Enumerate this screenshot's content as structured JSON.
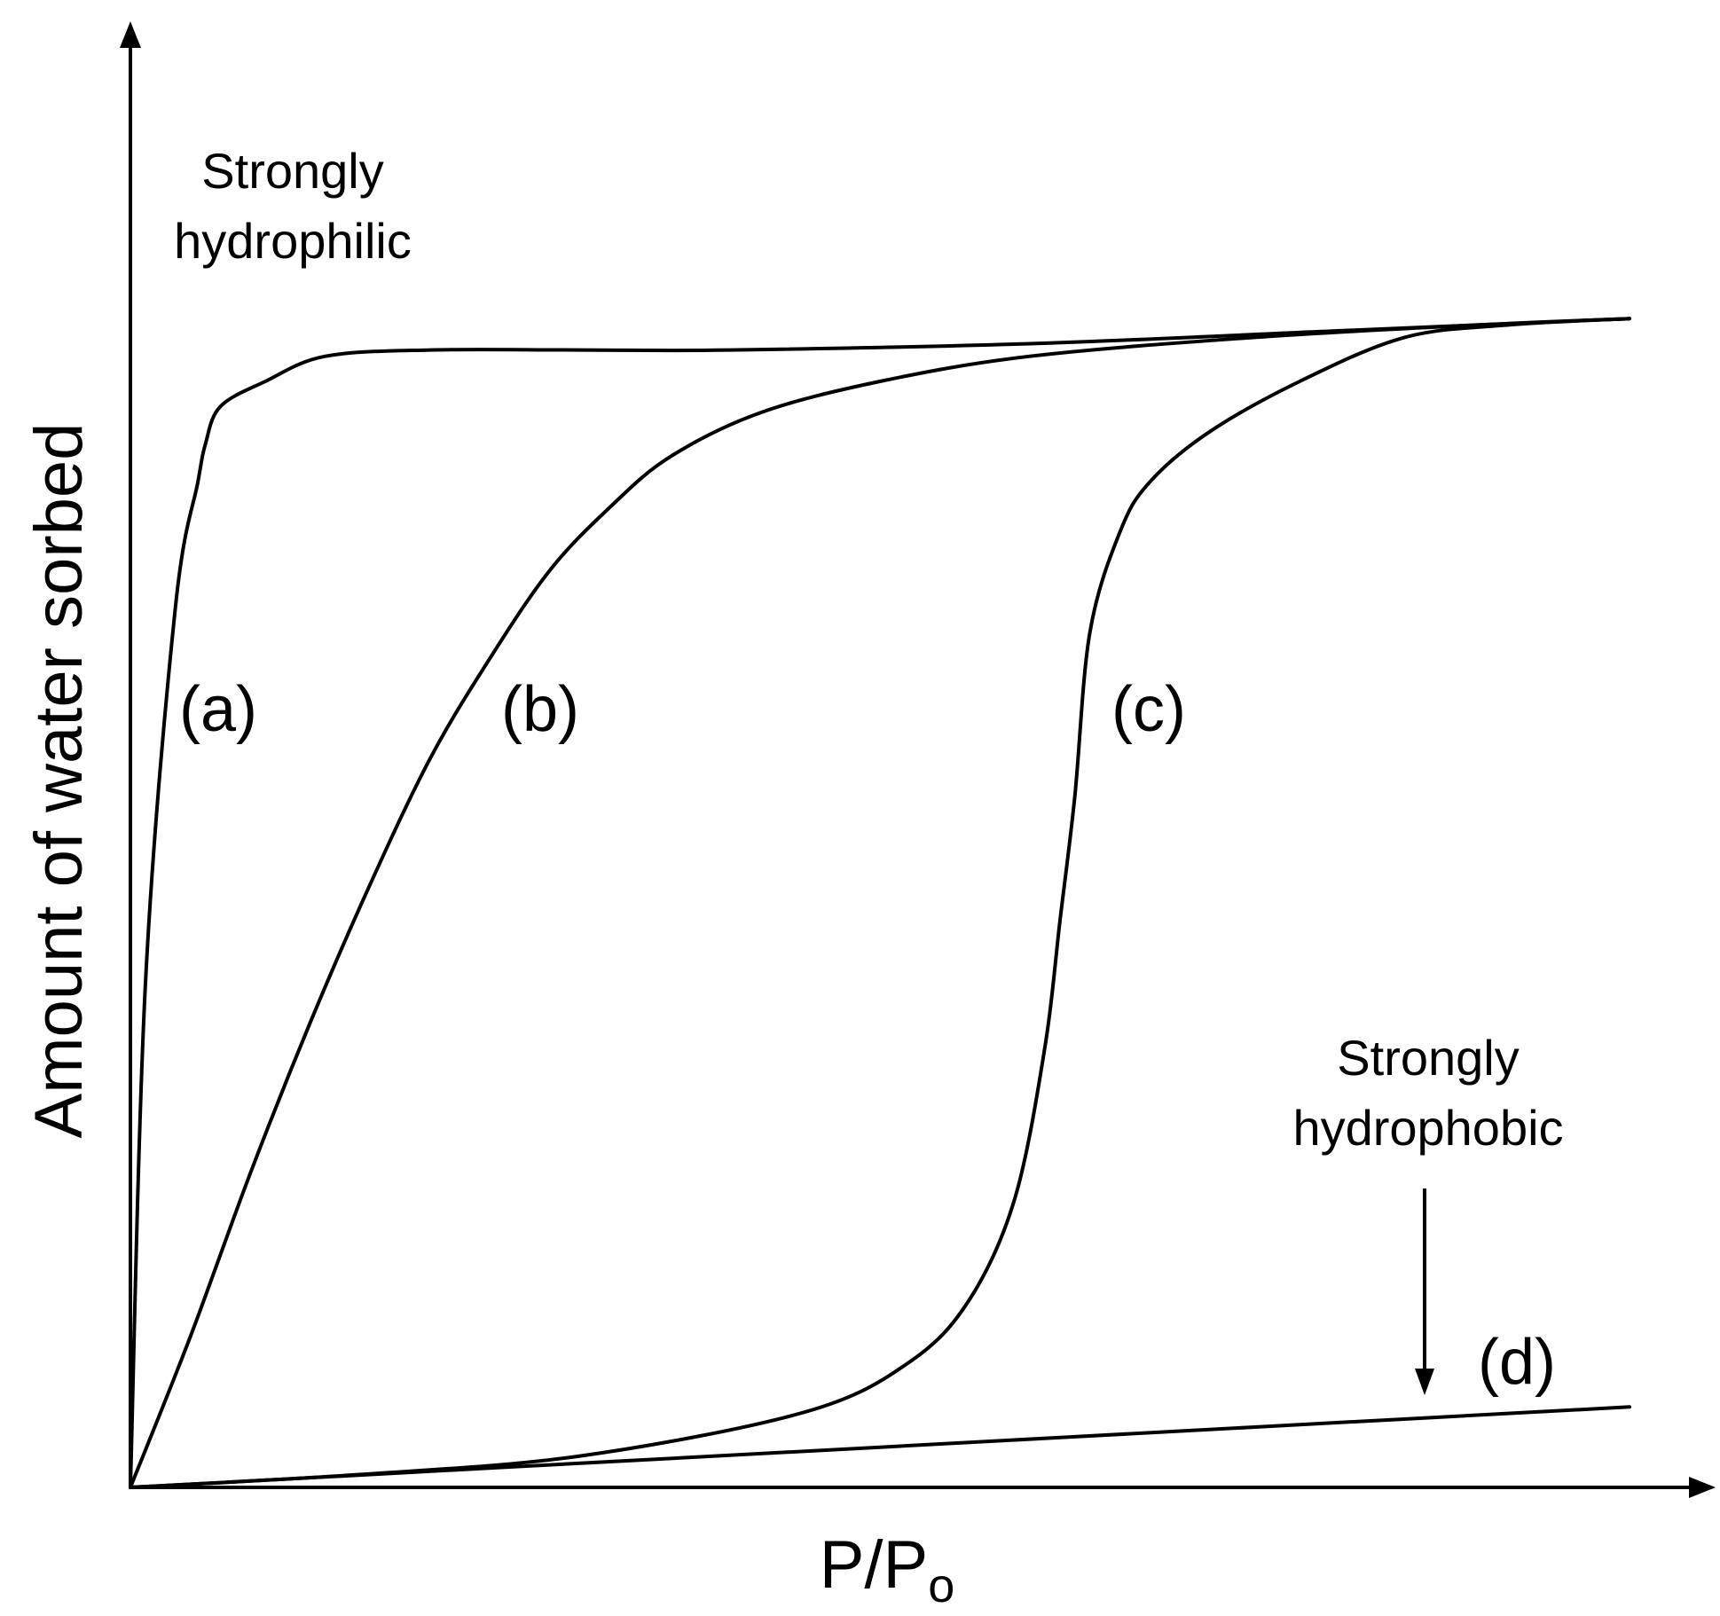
{
  "chart_data": {
    "type": "line",
    "xlabel": "P/P",
    "xlabel_subscript": "o",
    "ylabel": "Amount of water sorbed",
    "xlim": [
      0,
      1
    ],
    "ylim": [
      0,
      1
    ],
    "ticks": false,
    "grid": false,
    "series": [
      {
        "name": "(a)",
        "x": [
          0,
          0.01,
          0.03,
          0.045,
          0.05,
          0.06,
          0.09,
          0.13,
          0.2,
          0.3,
          0.4,
          0.6,
          0.8,
          1.0
        ],
        "y": [
          0,
          0.4,
          0.7,
          0.8,
          0.83,
          0.86,
          0.88,
          0.9,
          0.905,
          0.905,
          0.905,
          0.91,
          0.92,
          0.93
        ]
      },
      {
        "name": "(b)",
        "x": [
          0,
          0.04,
          0.08,
          0.12,
          0.16,
          0.2,
          0.24,
          0.28,
          0.32,
          0.36,
          0.42,
          0.5,
          0.6,
          0.75,
          0.9,
          1.0
        ],
        "y": [
          0,
          0.12,
          0.25,
          0.37,
          0.48,
          0.58,
          0.66,
          0.73,
          0.78,
          0.82,
          0.855,
          0.88,
          0.9,
          0.915,
          0.925,
          0.93
        ]
      },
      {
        "name": "(c)",
        "x": [
          0,
          0.15,
          0.3,
          0.45,
          0.52,
          0.56,
          0.59,
          0.61,
          0.62,
          0.63,
          0.64,
          0.66,
          0.68,
          0.72,
          0.78,
          0.85,
          0.92,
          1.0
        ],
        "y": [
          0,
          0.01,
          0.025,
          0.06,
          0.1,
          0.15,
          0.23,
          0.35,
          0.45,
          0.55,
          0.68,
          0.76,
          0.8,
          0.84,
          0.88,
          0.915,
          0.925,
          0.93
        ]
      },
      {
        "name": "(d)",
        "x": [
          0,
          0.25,
          0.5,
          0.75,
          1.0
        ],
        "y": [
          0,
          0.016,
          0.032,
          0.048,
          0.064
        ]
      }
    ],
    "annotations": [
      {
        "text_line1": "Strongly",
        "text_line2": "hydrophilic"
      },
      {
        "text_line1": "Strongly",
        "text_line2": "hydrophobic",
        "arrow_to": "(d)"
      }
    ]
  }
}
